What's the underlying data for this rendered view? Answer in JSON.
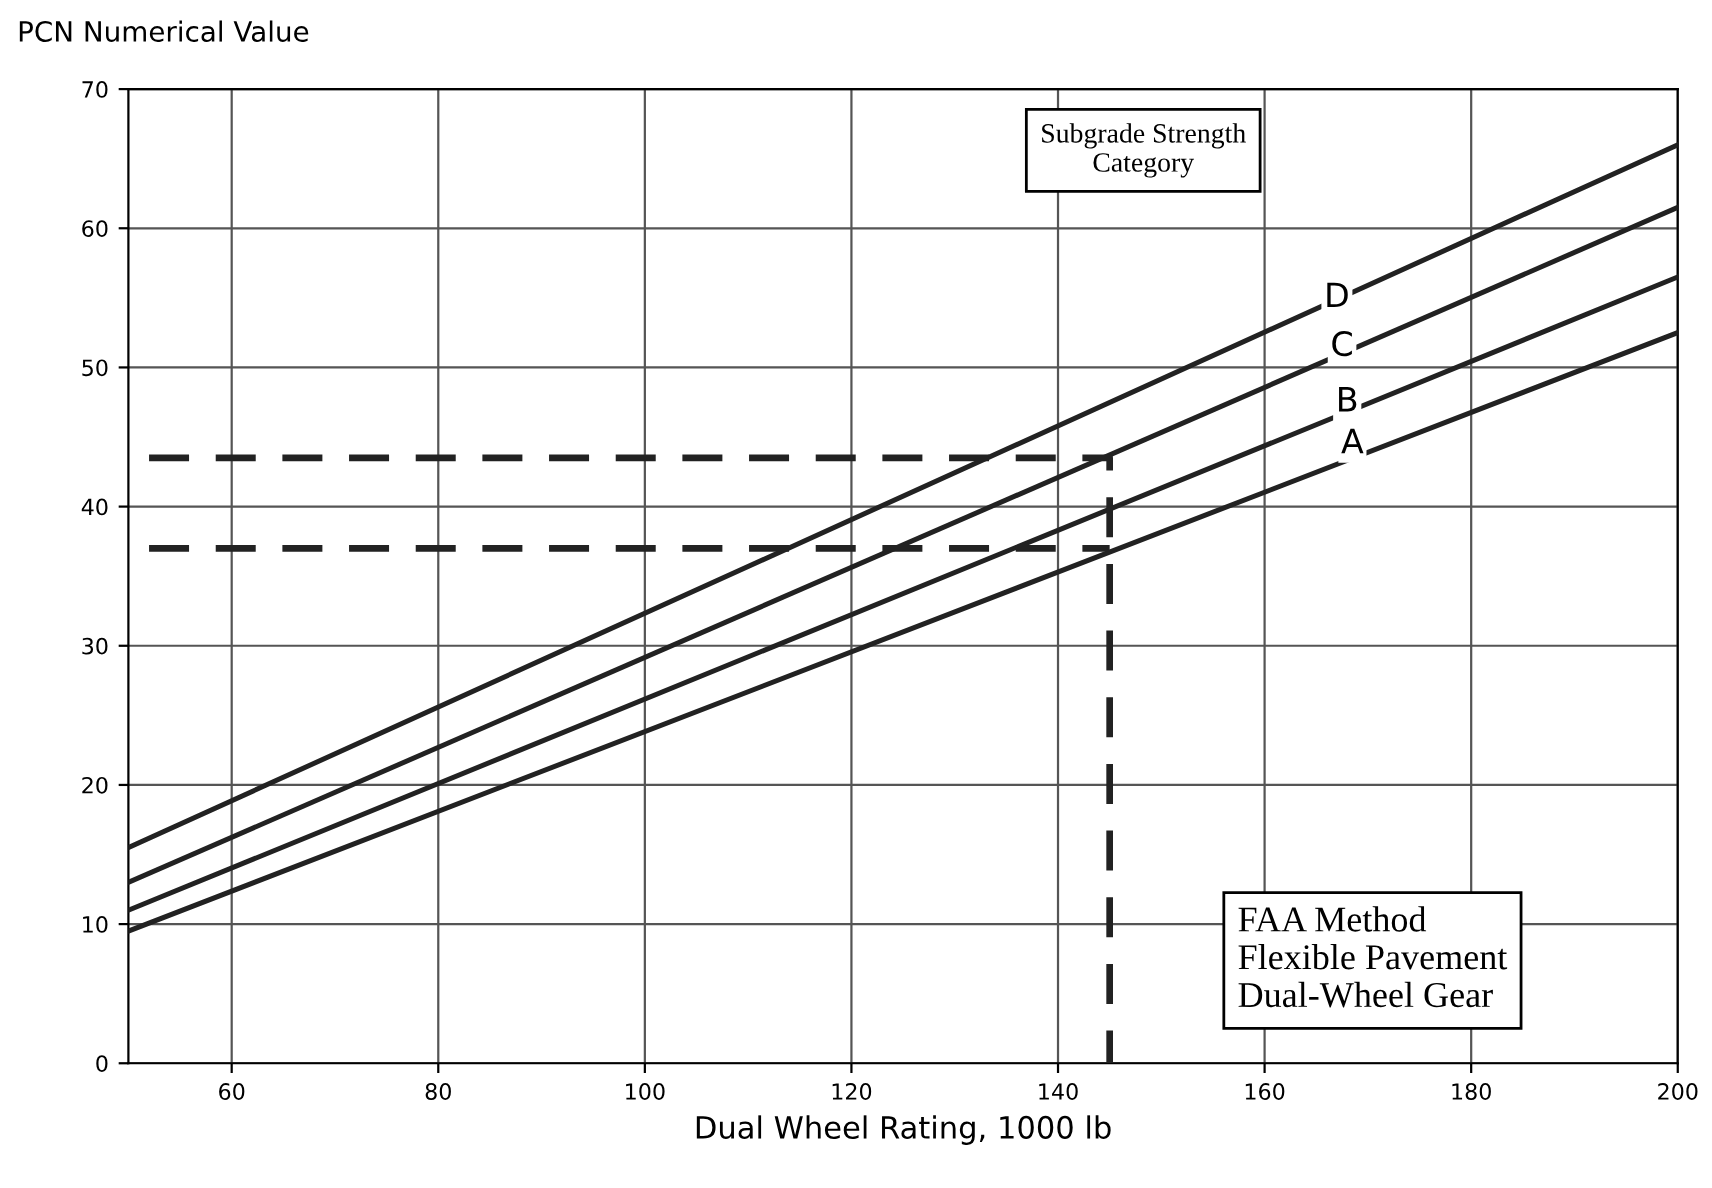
{
  "chart_data": {
    "type": "line",
    "ylabel": "PCN Numerical Value",
    "xlabel": "Dual Wheel Rating, 1000 lb",
    "xlim": [
      50,
      200
    ],
    "ylim": [
      0,
      70
    ],
    "xticks": [
      60,
      80,
      100,
      120,
      140,
      160,
      180,
      200
    ],
    "yticks": [
      0,
      10,
      20,
      30,
      40,
      50,
      60,
      70
    ],
    "grid": true,
    "legend": false,
    "marker": "none",
    "series": [
      {
        "color": "#222222",
        "x": [
          50,
          200
        ],
        "values": [
          15.5,
          66
        ]
      },
      {
        "color": "#222222",
        "x": [
          50,
          200
        ],
        "values": [
          13,
          61.5
        ]
      },
      {
        "color": "#222222",
        "x": [
          50,
          200
        ],
        "values": [
          11,
          56.5
        ]
      },
      {
        "color": "#222222",
        "x": [
          50,
          200
        ],
        "values": [
          9.5,
          52.5
        ]
      },
      {
        "color": "#222222",
        "x": [
          52,
          145,
          145
        ],
        "values": [
          43.5,
          43.5,
          0
        ],
        "line_style": "dashed"
      },
      {
        "color": "#222222",
        "x": [
          52,
          145
        ],
        "values": [
          37,
          37
        ],
        "line_style": "dashed"
      }
    ],
    "annotations": [
      {
        "text": "D",
        "x": 167,
        "y": 55
      },
      {
        "text": "C",
        "x": 167.5,
        "y": 51.5
      },
      {
        "text": "B",
        "x": 168,
        "y": 47.5
      },
      {
        "text": "A",
        "x": 168.5,
        "y": 44.5
      },
      "Subgrade Strength\nCategory",
      "FAA Method\nFlexible Pavement\nDual-Wheel Gear"
    ]
  }
}
